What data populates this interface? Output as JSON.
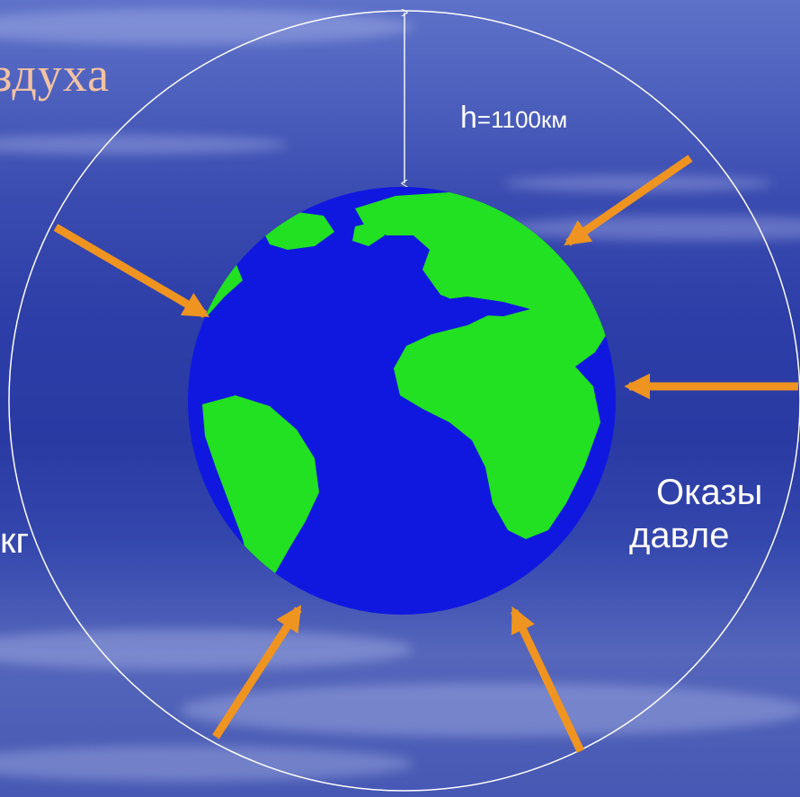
{
  "labels": {
    "title_fragment": "здуха",
    "height_letter": "h",
    "height_value": "=1100км",
    "right_line_1": "Оказы",
    "right_line_2": "давле",
    "left_fragment": "кг"
  },
  "colors": {
    "ocean": "#1018e0",
    "land": "#22e022",
    "arrow": "#ef9420",
    "orbit": "#ffffff",
    "title": "#f3c2a4"
  },
  "icons": {
    "globe": "earth-globe-icon",
    "arrows": "pressure-arrow-icon"
  }
}
